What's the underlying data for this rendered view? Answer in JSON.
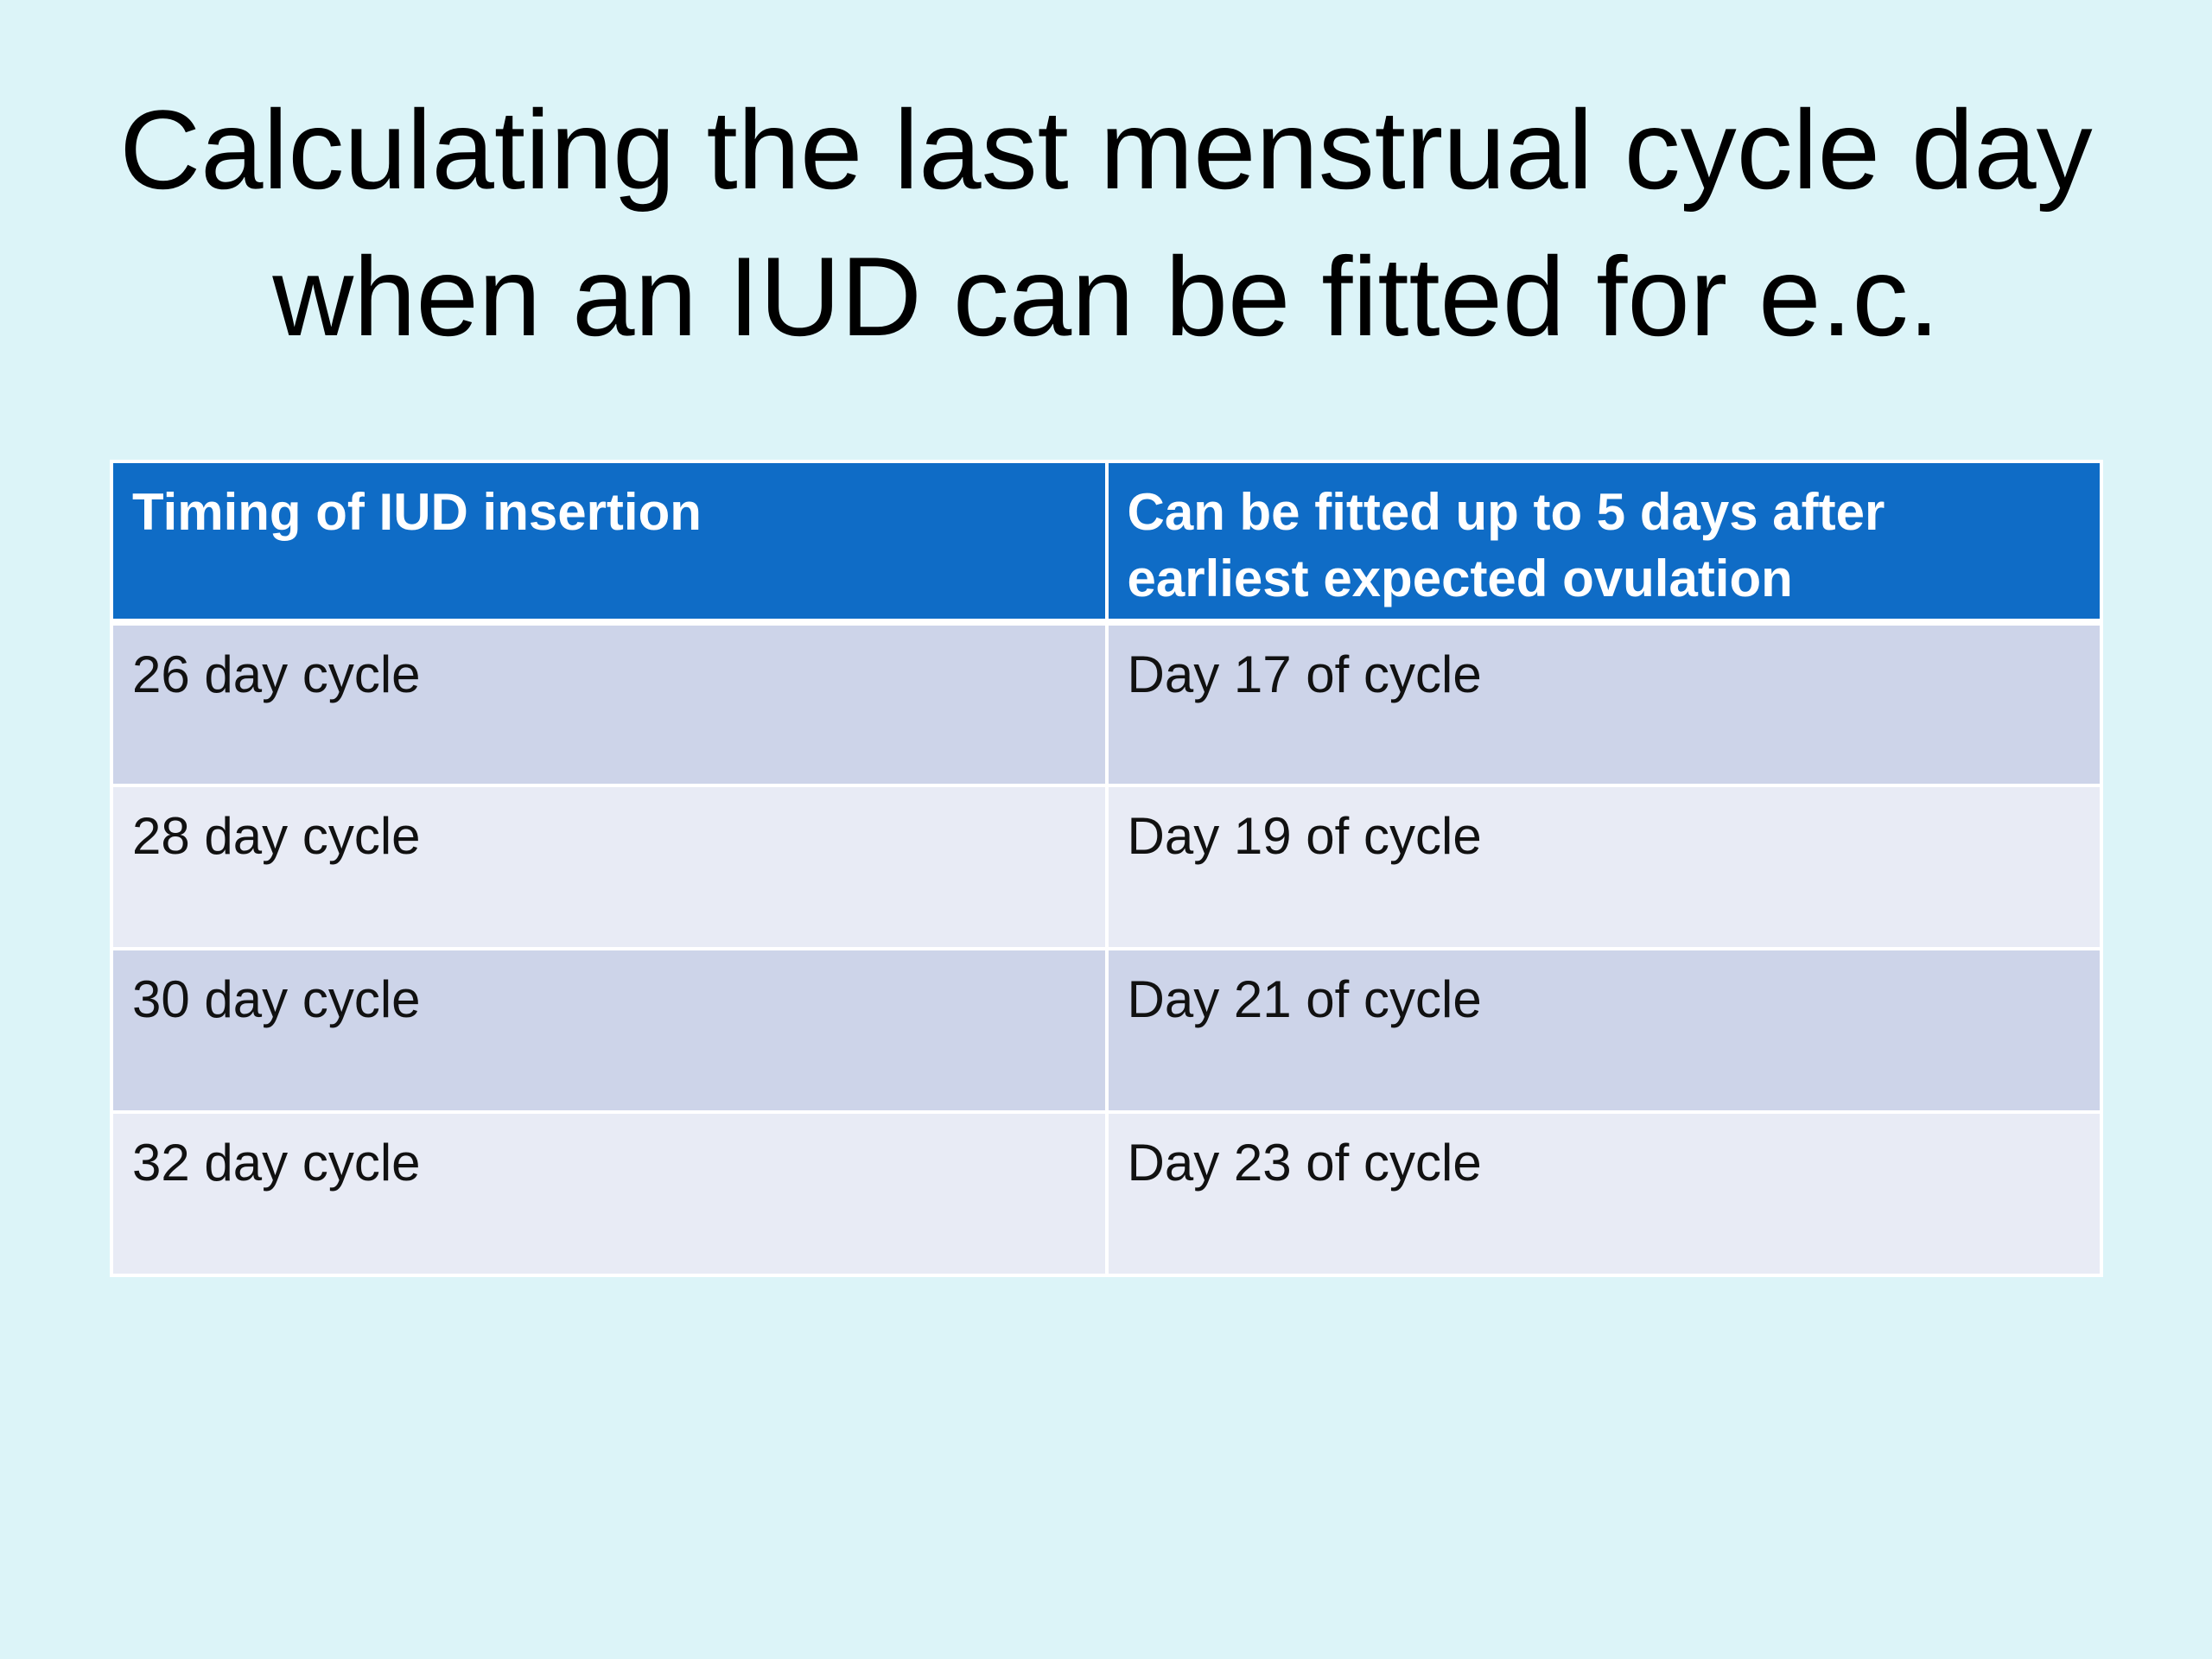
{
  "title": {
    "line1": "Calculating the last menstrual cycle day",
    "line2": "when an IUD can be fitted for e.c."
  },
  "table": {
    "headers": [
      "Timing of IUD insertion",
      "Can be fitted up to 5 days after earliest expected ovulation"
    ],
    "rows": [
      [
        "26 day cycle",
        "Day 17 of cycle"
      ],
      [
        "28 day cycle",
        "Day 19 of cycle"
      ],
      [
        "30 day cycle",
        "Day 21 of cycle"
      ],
      [
        "32 day cycle",
        "Day 23 of cycle"
      ]
    ],
    "colors": {
      "header_bg": "#0f6cc6",
      "row_dark_bg": "#cdd4e9",
      "row_light_bg": "#e8ebf5",
      "slide_bg": "#dcf4f8"
    }
  }
}
